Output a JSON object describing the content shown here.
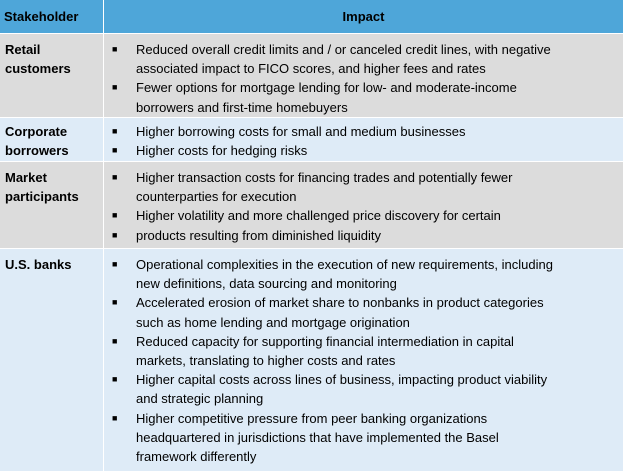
{
  "header": {
    "stakeholder": "Stakeholder",
    "impact": "Impact"
  },
  "rows": [
    {
      "stakeholder": [
        "Retail",
        "customers"
      ],
      "bullets": [
        [
          "Reduced overall credit limits and / or canceled credit lines, with negative",
          "associated impact to FICO scores, and higher fees and rates"
        ],
        [
          "Fewer options for mortgage lending for low- and moderate-income",
          "borrowers and first-time homebuyers"
        ]
      ]
    },
    {
      "stakeholder": [
        "Corporate",
        "borrowers"
      ],
      "bullets": [
        [
          "Higher borrowing costs for small and medium businesses"
        ],
        [
          "Higher costs for hedging risks"
        ]
      ]
    },
    {
      "stakeholder": [
        "Market",
        "participants"
      ],
      "bullets": [
        [
          "Higher transaction costs for financing trades and potentially fewer",
          "counterparties for execution"
        ],
        [
          "Higher volatility and more challenged price discovery for certain"
        ],
        [
          "products resulting from diminished liquidity"
        ]
      ]
    },
    {
      "stakeholder": [
        "U.S. banks"
      ],
      "bullets": [
        [
          "Operational complexities in the execution of new requirements, including",
          "new definitions, data sourcing and monitoring"
        ],
        [
          "Accelerated erosion of market share to nonbanks in product categories",
          "such as home lending and mortgage origination"
        ],
        [
          "Reduced capacity for supporting financial intermediation in capital",
          "markets, translating to higher costs and rates"
        ],
        [
          "Higher capital costs across lines of business, impacting product viability",
          "and strategic planning"
        ],
        [
          "Higher competitive pressure from peer banking organizations",
          "headquartered in jurisdictions that have implemented the Basel",
          "framework differently"
        ]
      ]
    }
  ],
  "bullet_glyph": "■",
  "colors": {
    "header": "#4ea6d9",
    "grey_row": "#dcdcdc",
    "blue_row": "#deebf7"
  }
}
